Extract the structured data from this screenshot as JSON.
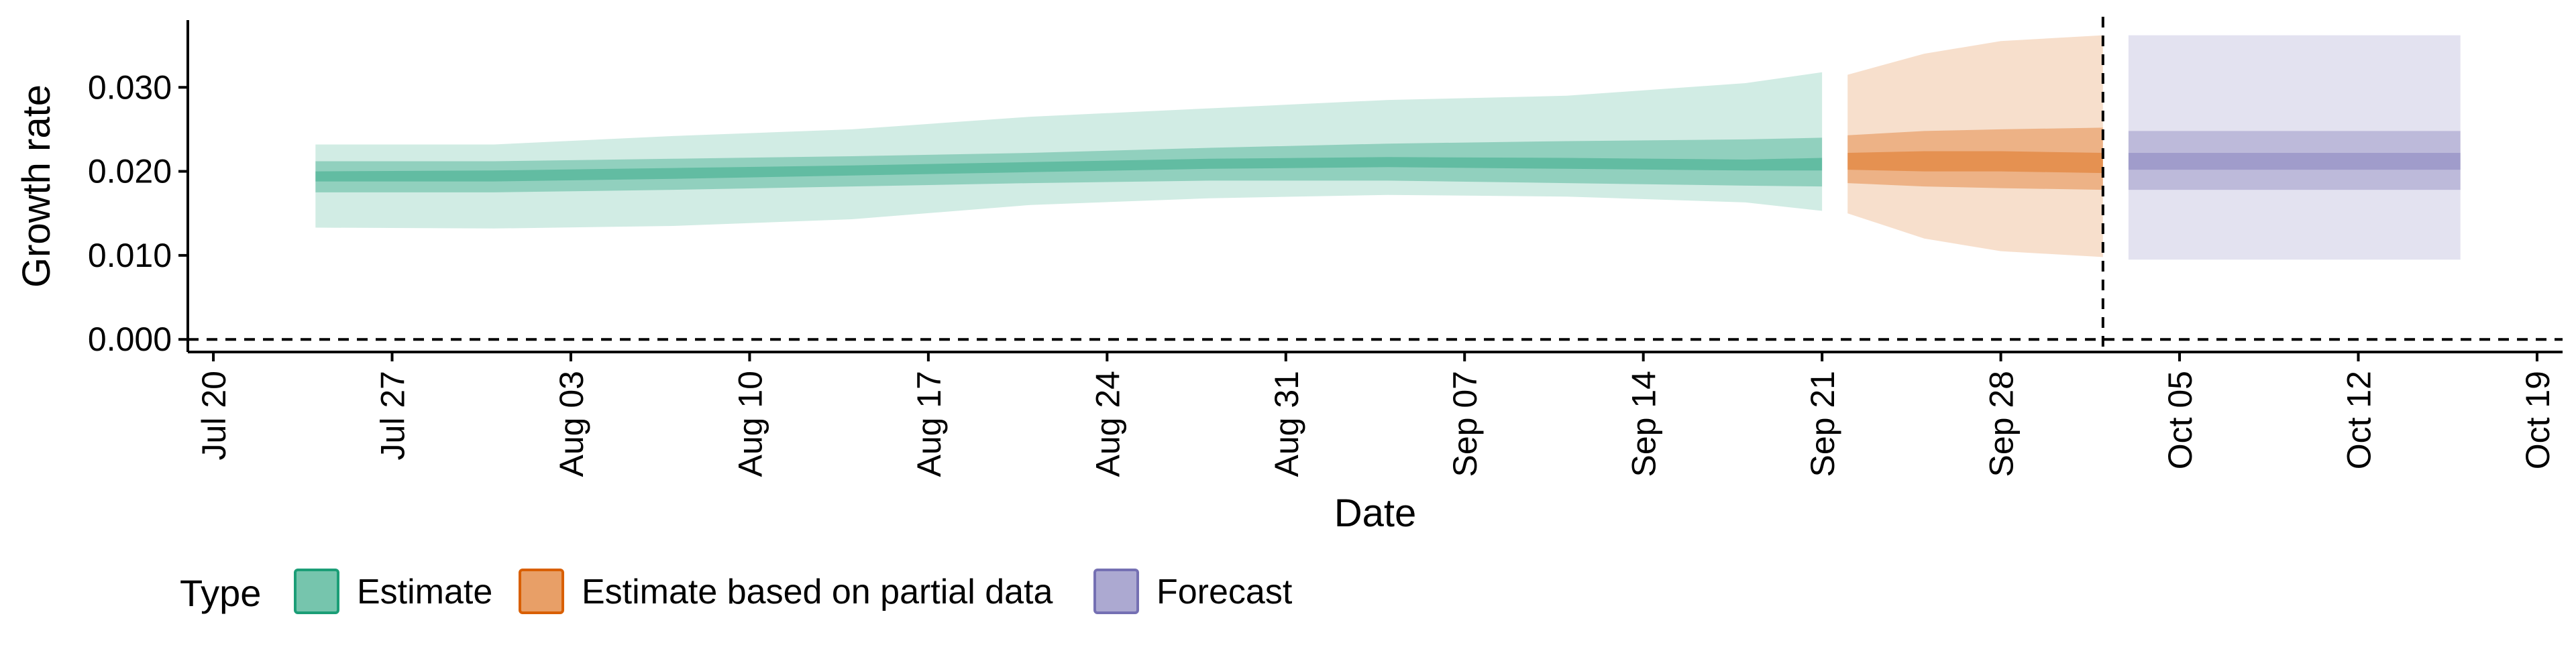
{
  "chart_data": {
    "type": "area",
    "xlabel": "Date",
    "ylabel": "Growth rate",
    "x_axis_type": "date",
    "x_range": [
      "2020-07-19",
      "2020-10-20"
    ],
    "ylim": [
      -0.0015,
      0.038
    ],
    "grid": false,
    "reference_lines": [
      {
        "axis": "y",
        "value": 0,
        "style": "dashed"
      },
      {
        "axis": "x",
        "value": "2020-10-02",
        "style": "dashed"
      }
    ],
    "x_ticks": [
      {
        "date": "2020-07-20",
        "label": "Jul 20"
      },
      {
        "date": "2020-07-27",
        "label": "Jul 27"
      },
      {
        "date": "2020-08-03",
        "label": "Aug 03"
      },
      {
        "date": "2020-08-10",
        "label": "Aug 10"
      },
      {
        "date": "2020-08-17",
        "label": "Aug 17"
      },
      {
        "date": "2020-08-24",
        "label": "Aug 24"
      },
      {
        "date": "2020-08-31",
        "label": "Aug 31"
      },
      {
        "date": "2020-09-07",
        "label": "Sep 07"
      },
      {
        "date": "2020-09-14",
        "label": "Sep 14"
      },
      {
        "date": "2020-09-21",
        "label": "Sep 21"
      },
      {
        "date": "2020-09-28",
        "label": "Sep 28"
      },
      {
        "date": "2020-10-05",
        "label": "Oct 05"
      },
      {
        "date": "2020-10-12",
        "label": "Oct 12"
      },
      {
        "date": "2020-10-19",
        "label": "Oct 19"
      }
    ],
    "y_ticks": [
      {
        "value": 0.0,
        "label": "0.000"
      },
      {
        "value": 0.01,
        "label": "0.010"
      },
      {
        "value": 0.02,
        "label": "0.020"
      },
      {
        "value": 0.03,
        "label": "0.030"
      }
    ],
    "legend": {
      "title": "Type",
      "position": "bottom-left",
      "entries": [
        {
          "label": "Estimate",
          "color": "#1b9e77"
        },
        {
          "label": "Estimate based on partial data",
          "color": "#d95f02"
        },
        {
          "label": "Forecast",
          "color": "#7570b3"
        }
      ]
    },
    "series": [
      {
        "type_index": 0,
        "color": "#1b9e77",
        "points": [
          {
            "x": "2020-07-24",
            "lo90": 0.0133,
            "hi90": 0.0232,
            "lo50": 0.0175,
            "hi50": 0.0212,
            "lo20": 0.0188,
            "hi20": 0.02
          },
          {
            "x": "2020-07-31",
            "lo90": 0.0132,
            "hi90": 0.0232,
            "lo50": 0.0175,
            "hi50": 0.0212,
            "lo20": 0.0188,
            "hi20": 0.0201
          },
          {
            "x": "2020-08-07",
            "lo90": 0.0135,
            "hi90": 0.0242,
            "lo50": 0.0178,
            "hi50": 0.0215,
            "lo20": 0.0191,
            "hi20": 0.0204
          },
          {
            "x": "2020-08-14",
            "lo90": 0.0143,
            "hi90": 0.025,
            "lo50": 0.0182,
            "hi50": 0.0218,
            "lo20": 0.0195,
            "hi20": 0.0207
          },
          {
            "x": "2020-08-21",
            "lo90": 0.016,
            "hi90": 0.0265,
            "lo50": 0.0186,
            "hi50": 0.0222,
            "lo20": 0.0199,
            "hi20": 0.0211
          },
          {
            "x": "2020-08-28",
            "lo90": 0.0168,
            "hi90": 0.0275,
            "lo50": 0.0189,
            "hi50": 0.0228,
            "lo20": 0.0203,
            "hi20": 0.0215
          },
          {
            "x": "2020-09-04",
            "lo90": 0.0172,
            "hi90": 0.0285,
            "lo50": 0.0189,
            "hi50": 0.0233,
            "lo20": 0.0205,
            "hi20": 0.0217
          },
          {
            "x": "2020-09-11",
            "lo90": 0.017,
            "hi90": 0.029,
            "lo50": 0.0186,
            "hi50": 0.0236,
            "lo20": 0.0203,
            "hi20": 0.0216
          },
          {
            "x": "2020-09-18",
            "lo90": 0.0163,
            "hi90": 0.0305,
            "lo50": 0.0183,
            "hi50": 0.0238,
            "lo20": 0.0201,
            "hi20": 0.0214
          },
          {
            "x": "2020-09-21",
            "lo90": 0.0153,
            "hi90": 0.0318,
            "lo50": 0.0182,
            "hi50": 0.024,
            "lo20": 0.0201,
            "hi20": 0.0216
          }
        ]
      },
      {
        "type_index": 1,
        "color": "#d95f02",
        "points": [
          {
            "x": "2020-09-22",
            "lo90": 0.015,
            "hi90": 0.0315,
            "lo50": 0.0186,
            "hi50": 0.0243,
            "lo20": 0.0202,
            "hi20": 0.0222
          },
          {
            "x": "2020-09-25",
            "lo90": 0.012,
            "hi90": 0.034,
            "lo50": 0.0182,
            "hi50": 0.0248,
            "lo20": 0.02,
            "hi20": 0.0224
          },
          {
            "x": "2020-09-28",
            "lo90": 0.0105,
            "hi90": 0.0355,
            "lo50": 0.018,
            "hi50": 0.025,
            "lo20": 0.02,
            "hi20": 0.0224
          },
          {
            "x": "2020-10-02",
            "lo90": 0.0098,
            "hi90": 0.0362,
            "lo50": 0.0178,
            "hi50": 0.0252,
            "lo20": 0.0198,
            "hi20": 0.0222
          }
        ]
      },
      {
        "type_index": 2,
        "color": "#7570b3",
        "points": [
          {
            "x": "2020-10-03",
            "lo90": 0.0095,
            "hi90": 0.0362,
            "lo50": 0.0178,
            "hi50": 0.0248,
            "lo20": 0.0202,
            "hi20": 0.0222
          },
          {
            "x": "2020-10-16",
            "lo90": 0.0095,
            "hi90": 0.0362,
            "lo50": 0.0178,
            "hi50": 0.0248,
            "lo20": 0.0202,
            "hi20": 0.0222
          }
        ]
      }
    ]
  }
}
